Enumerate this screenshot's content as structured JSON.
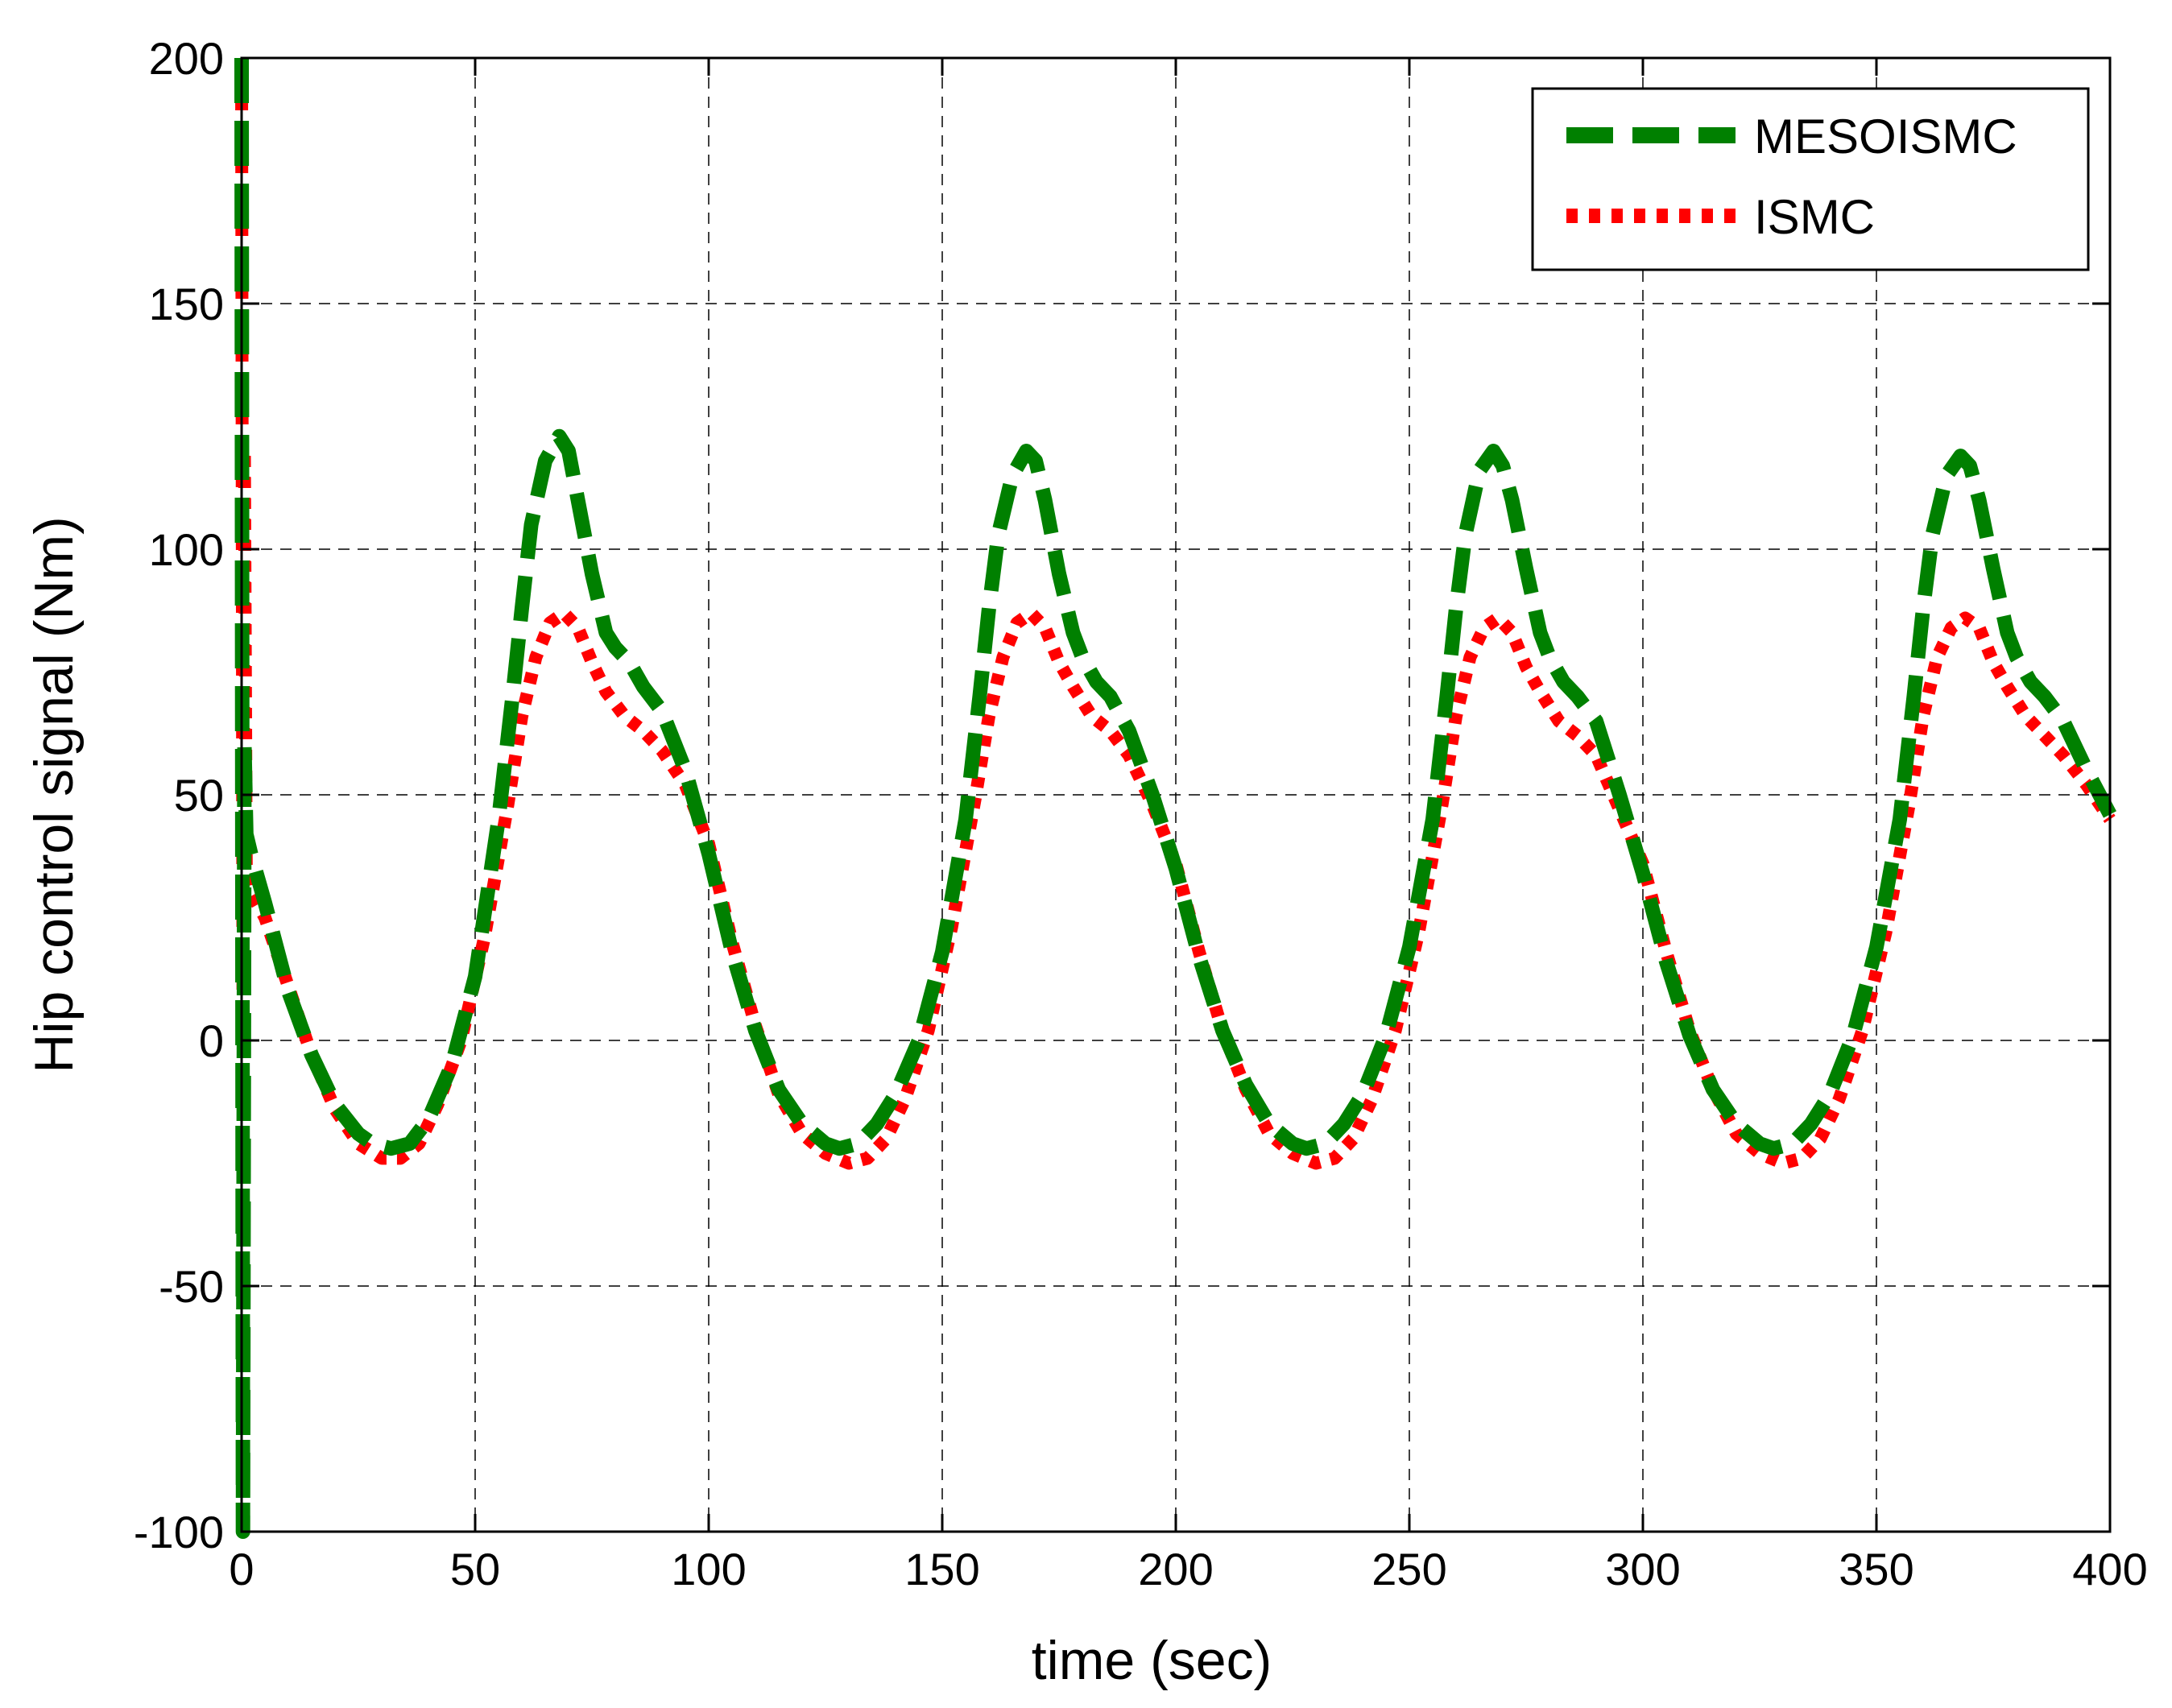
{
  "chart_data": {
    "type": "line",
    "xlabel": "time (sec)",
    "ylabel": "Hip control signal (Nm)",
    "xlim": [
      0,
      400
    ],
    "ylim": [
      -100,
      200
    ],
    "xticks": [
      "0",
      "50",
      "100",
      "150",
      "200",
      "250",
      "300",
      "350",
      "400"
    ],
    "yticks": [
      "-100",
      "-50",
      "0",
      "50",
      "100",
      "150",
      "200"
    ],
    "grid": true,
    "legend_position": "top-right",
    "series": [
      {
        "name": "MESOISMC",
        "color": "#008000",
        "style": "dashed",
        "x": [
          0,
          0.3,
          0.6,
          1,
          2,
          5,
          10,
          15,
          20,
          25,
          28,
          32,
          36,
          40,
          45,
          50,
          55,
          58,
          60,
          62,
          65,
          68,
          70,
          72,
          75,
          78,
          80,
          83,
          86,
          90,
          95,
          100,
          105,
          110,
          115,
          120,
          125,
          128,
          132,
          136,
          140,
          145,
          150,
          155,
          158,
          160,
          162,
          165,
          168,
          170,
          172,
          175,
          178,
          180,
          183,
          186,
          190,
          195,
          200,
          205,
          210,
          215,
          220,
          225,
          228,
          232,
          236,
          240,
          245,
          250,
          255,
          258,
          260,
          262,
          265,
          268,
          270,
          272,
          275,
          278,
          280,
          283,
          286,
          290,
          295,
          300,
          305,
          310,
          315,
          320,
          325,
          328,
          332,
          336,
          340,
          345,
          350,
          355,
          358,
          360,
          362,
          365,
          368,
          370,
          372,
          375,
          378,
          380,
          383,
          386,
          390,
          395,
          400
        ],
        "y": [
          200,
          -100,
          60,
          42,
          38,
          28,
          10,
          -3,
          -13,
          -19,
          -21,
          -22,
          -21,
          -16,
          -5,
          13,
          45,
          70,
          88,
          105,
          118,
          123,
          120,
          110,
          95,
          83,
          80,
          77,
          72,
          67,
          55,
          38,
          18,
          2,
          -10,
          -17,
          -21,
          -22,
          -21,
          -17,
          -11,
          0,
          18,
          45,
          70,
          88,
          103,
          115,
          120,
          118,
          110,
          95,
          83,
          78,
          73,
          70,
          63,
          50,
          35,
          17,
          2,
          -9,
          -17,
          -21,
          -22,
          -21,
          -17,
          -11,
          1,
          19,
          45,
          70,
          88,
          103,
          116,
          120,
          117,
          110,
          96,
          83,
          78,
          73,
          70,
          65,
          50,
          34,
          16,
          1,
          -10,
          -17,
          -21,
          -22,
          -21,
          -17,
          -11,
          1,
          19,
          45,
          70,
          88,
          103,
          115,
          119,
          117,
          110,
          96,
          83,
          78,
          73,
          70,
          65,
          55,
          46
        ]
      },
      {
        "name": "ISMC",
        "color": "#ff0000",
        "style": "dotted",
        "x": [
          0,
          0.3,
          0.6,
          1,
          2,
          5,
          10,
          15,
          20,
          25,
          30,
          34,
          38,
          42,
          47,
          52,
          57,
          60,
          63,
          66,
          69,
          72,
          75,
          78,
          82,
          86,
          90,
          95,
          100,
          105,
          110,
          115,
          120,
          125,
          130,
          134,
          138,
          142,
          147,
          152,
          157,
          160,
          163,
          166,
          169,
          172,
          175,
          178,
          182,
          186,
          190,
          195,
          200,
          205,
          210,
          215,
          220,
          225,
          230,
          234,
          238,
          242,
          247,
          252,
          257,
          260,
          263,
          266,
          269,
          272,
          275,
          278,
          282,
          286,
          290,
          295,
          300,
          305,
          310,
          315,
          320,
          325,
          330,
          334,
          338,
          342,
          347,
          352,
          357,
          360,
          363,
          366,
          369,
          372,
          375,
          378,
          382,
          386,
          390,
          395,
          400
        ],
        "y": [
          200,
          5,
          120,
          35,
          30,
          25,
          11,
          -3,
          -14,
          -21,
          -24,
          -24,
          -21,
          -13,
          0,
          21,
          48,
          66,
          78,
          85,
          87,
          84,
          77,
          71,
          66,
          63,
          59,
          52,
          40,
          20,
          3,
          -11,
          -19,
          -23,
          -25,
          -24,
          -20,
          -12,
          2,
          23,
          49,
          66,
          78,
          85,
          87,
          84,
          77,
          72,
          66,
          63,
          58,
          48,
          36,
          18,
          2,
          -10,
          -19,
          -23,
          -25,
          -24,
          -20,
          -12,
          2,
          22,
          48,
          66,
          78,
          84,
          86,
          83,
          76,
          71,
          65,
          62,
          58,
          47,
          36,
          18,
          2,
          -10,
          -19,
          -23,
          -25,
          -24,
          -20,
          -12,
          2,
          22,
          48,
          66,
          78,
          84,
          86,
          84,
          77,
          72,
          66,
          62,
          58,
          52,
          45
        ]
      }
    ]
  }
}
